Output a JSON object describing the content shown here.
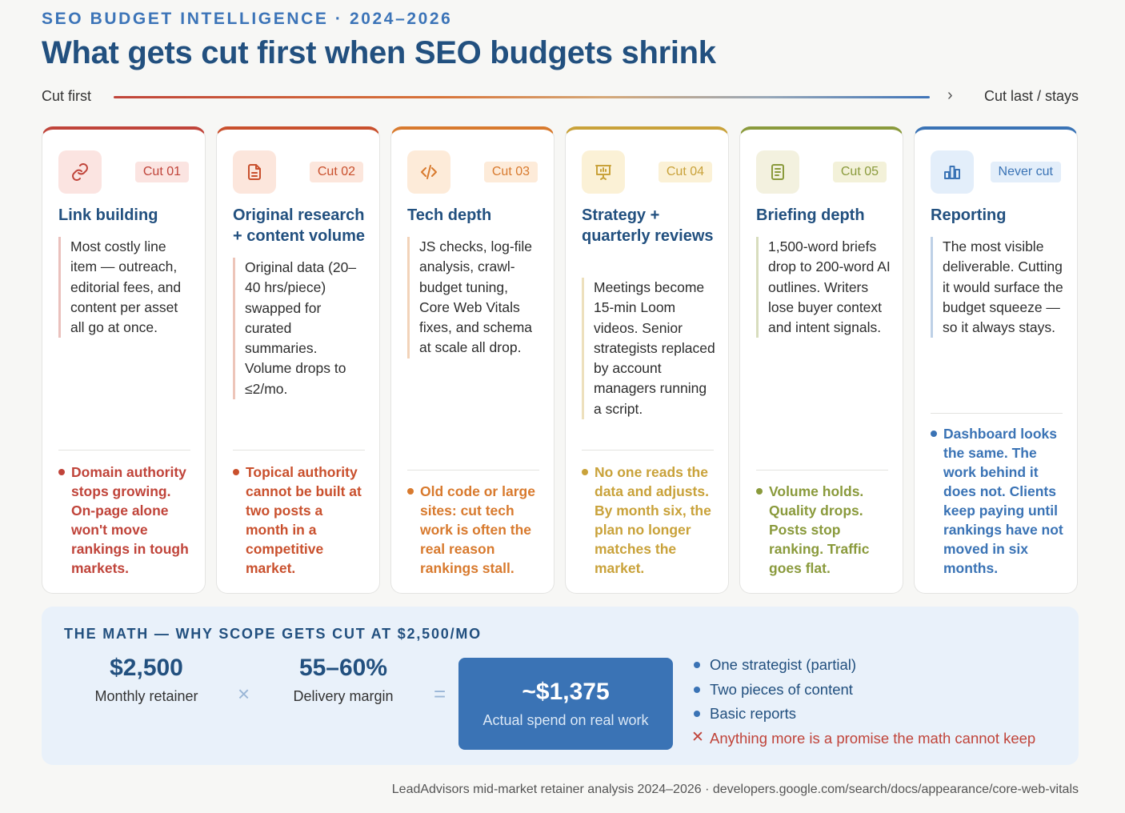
{
  "header": {
    "eyebrow": "SEO BUDGET INTELLIGENCE · 2024–2026",
    "title": "What gets cut first when SEO budgets shrink"
  },
  "scale": {
    "left_label": "Cut first",
    "right_label": "Cut last / stays"
  },
  "cards": [
    {
      "tag": "Cut 01",
      "title": "Link building",
      "icon": "link-icon",
      "accent": "#c0443a",
      "tag_bg": "#fbe4e1",
      "icon_bg": "#fbe4e1",
      "description": "Most costly line item — outreach, editorial fees, and content per asset all go at once.",
      "note": "Domain authority stops growing. On-page alone won't move rankings in tough markets."
    },
    {
      "tag": "Cut 02",
      "title": "Original research + content volume",
      "icon": "document-icon",
      "accent": "#c9502d",
      "tag_bg": "#fce6dc",
      "icon_bg": "#fce6dc",
      "description": "Original data (20–40 hrs/piece) swapped for curated summaries. Volume drops to ≤2/mo.",
      "note": "Topical authority cannot be built at two posts a month in a competitive market."
    },
    {
      "tag": "Cut 03",
      "title": "Tech depth",
      "icon": "code-icon",
      "accent": "#d87a2e",
      "tag_bg": "#fdebd9",
      "icon_bg": "#fdebd9",
      "description": "JS checks, log-file analysis, crawl-budget tuning, Core Web Vitals fixes, and schema at scale all drop.",
      "note": "Old code or large sites: cut tech work is often the real reason rankings stall."
    },
    {
      "tag": "Cut 04",
      "title": "Strategy + quarterly reviews",
      "icon": "presentation-icon",
      "accent": "#c9a23a",
      "tag_bg": "#fbf1d6",
      "icon_bg": "#fbf1d6",
      "description": "Meetings become 15-min Loom videos. Senior strategists replaced by account managers running a script.",
      "note": "No one reads the data and adjusts. By month six, the plan no longer matches the market."
    },
    {
      "tag": "Cut 05",
      "title": "Briefing depth",
      "icon": "brief-icon",
      "accent": "#8a9a3c",
      "tag_bg": "#f3f1d9",
      "icon_bg": "#f3f1df",
      "description": "1,500-word briefs drop to 200-word AI outlines. Writers lose buyer context and intent signals.",
      "note": "Volume holds. Quality drops. Posts stop ranking. Traffic goes flat."
    },
    {
      "tag": "Never cut",
      "title": "Reporting",
      "icon": "bar-chart-icon",
      "accent": "#3a73b5",
      "tag_bg": "#e3eefa",
      "icon_bg": "#e3eefa",
      "description": "The most visible deliverable. Cutting it would surface the budget squeeze — so it always stays.",
      "note": "Dashboard looks the same. The work behind it does not. Clients keep paying until rankings have not moved in six months."
    }
  ],
  "math": {
    "title": "THE MATH — WHY SCOPE GETS CUT AT $2,500/MO",
    "retainer_value": "$2,500",
    "retainer_label": "Monthly retainer",
    "times": "×",
    "margin_value": "55–60%",
    "margin_label": "Delivery margin",
    "equals": "=",
    "result_value": "~$1,375",
    "result_label": "Actual spend on real work",
    "items": [
      "One strategist (partial)",
      "Two pieces of content",
      "Basic reports"
    ],
    "warning": "Anything more is a promise the math cannot keep"
  },
  "footer": "LeadAdvisors mid-market retainer analysis 2024–2026 · developers.google.com/search/docs/appearance/core-web-vitals"
}
